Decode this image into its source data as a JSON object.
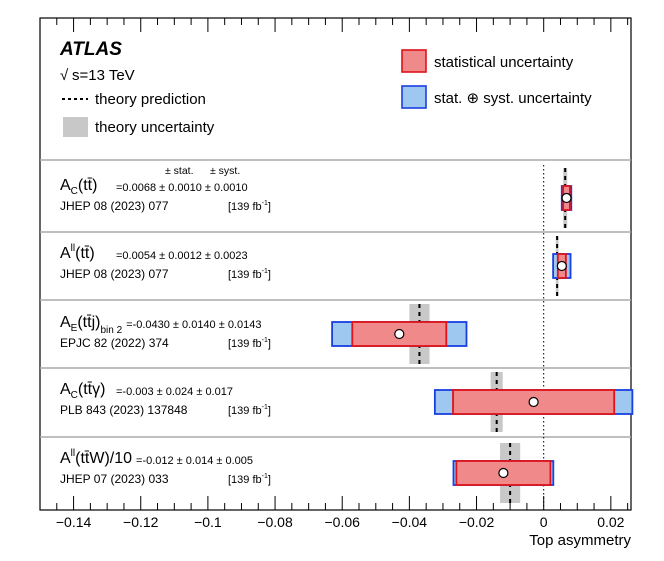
{
  "chart_data": {
    "type": "summary-plot",
    "experiment": "ATLAS",
    "energy_label": "√s=13 TeV",
    "energy_sqrt": "√",
    "energy_rest": "s=13 TeV",
    "xlabel": "Top asymmetry",
    "xlim": [
      -0.15,
      0.026
    ],
    "x_ticks": [
      -0.14,
      -0.12,
      -0.1,
      -0.08,
      -0.06,
      -0.04,
      -0.02,
      0,
      0.02
    ],
    "x_tick_labels": [
      "−0.14",
      "−0.12",
      "−0.1",
      "−0.08",
      "−0.06",
      "−0.04",
      "−0.02",
      "0",
      "0.02"
    ],
    "zero_line": 0,
    "column_headers": {
      "stat": "± stat.",
      "syst": "± syst."
    },
    "legend": {
      "theory_prediction": "theory prediction",
      "theory_uncertainty": "theory uncertainty",
      "statistical": "statistical uncertainty",
      "total": "stat. ⊕ syst. uncertainty"
    },
    "colors": {
      "stat_fill": "#f08a8a",
      "stat_edge": "#e0121a",
      "total_fill": "#9fc8f0",
      "total_edge": "#1a3fe0",
      "theory_band": "#c8c8c8"
    },
    "measurements": [
      {
        "label_main": "A",
        "label_sub": "C",
        "label_rest": "(tt̄)",
        "value_text": "=0.0068 ± 0.0010 ± 0.0010",
        "reference": "JHEP 08 (2023) 077",
        "lumi": "[139 fb",
        "lumi_sup": "-1",
        "lumi_end": "]",
        "value": 0.0068,
        "stat": 0.001,
        "syst": 0.001,
        "theory": 0.0064,
        "theory_unc": 0.0006
      },
      {
        "label_main": "A",
        "label_sub": "ll",
        "label_sub_pos": "sup",
        "label_rest": "(tt̄)",
        "value_text": "=0.0054 ± 0.0012 ± 0.0023",
        "reference": "JHEP 08 (2023) 077",
        "lumi": "[139 fb",
        "lumi_sup": "-1",
        "lumi_end": "]",
        "value": 0.0054,
        "stat": 0.0012,
        "syst": 0.0023,
        "theory": 0.004,
        "theory_unc": 0.0004
      },
      {
        "label_main": "A",
        "label_sub": "E",
        "label_rest": "(tt̄j)",
        "label_sub2": "bin 2",
        "value_text": "=-0.0430 ± 0.0140 ± 0.0143",
        "reference": "EPJC 82 (2022) 374",
        "lumi": "[139 fb",
        "lumi_sup": "-1",
        "lumi_end": "]",
        "value": -0.043,
        "stat": 0.014,
        "syst": 0.0143,
        "theory": -0.037,
        "theory_unc": 0.003
      },
      {
        "label_main": "A",
        "label_sub": "C",
        "label_rest": "(tt̄γ)",
        "value_text": "=-0.003 ± 0.024 ± 0.017",
        "reference": "PLB 843 (2023) 137848",
        "lumi": "[139 fb",
        "lumi_sup": "-1",
        "lumi_end": "]",
        "value": -0.003,
        "stat": 0.024,
        "syst": 0.017,
        "theory": -0.014,
        "theory_unc": 0.0018
      },
      {
        "label_main": "A",
        "label_sub": "ll",
        "label_sub_pos": "sup",
        "label_rest": "(tt̄W)/10",
        "value_text": "=-0.012 ± 0.014 ± 0.005",
        "reference": "JHEP 07 (2023) 033",
        "lumi": "[139 fb",
        "lumi_sup": "-1",
        "lumi_end": "]",
        "value": -0.012,
        "stat": 0.014,
        "syst": 0.005,
        "theory": -0.01,
        "theory_unc": 0.003
      }
    ]
  }
}
